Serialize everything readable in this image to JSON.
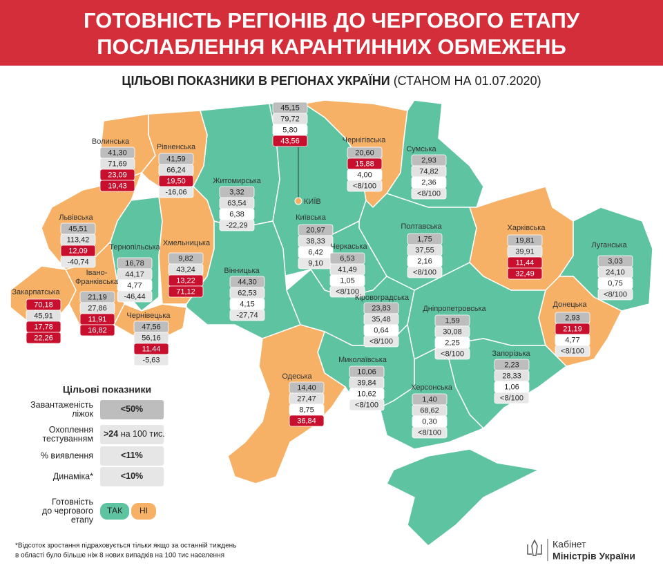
{
  "header": {
    "title_lines": [
      "ГОТОВНІСТЬ РЕГІОНІВ ДО ЧЕРГОВОГО ЕТАПУ",
      "ПОСЛАБЛЕННЯ КАРАНТИННИХ ОБМЕЖЕНЬ"
    ]
  },
  "subtitle": {
    "bold": "ЦІЛЬОВІ ПОКАЗНИКИ В РЕГІОНАХ УКРАЇНИ",
    "normal": " (СТАНОМ НА 01.07.2020)"
  },
  "colors": {
    "ready": "#5dc3a1",
    "not_ready": "#f6b166",
    "highlight": "#c8102e",
    "header": "#d42e3b"
  },
  "kyiv_city": {
    "label": "КИЇВ",
    "values": [
      "45,15",
      "79,72",
      "5,80",
      "43,56"
    ],
    "highlight": [
      false,
      false,
      false,
      true
    ]
  },
  "regions": [
    {
      "name": "Волинська",
      "ready": false,
      "values": [
        "41,30",
        "71,69",
        "23,09",
        "19,43"
      ],
      "highlight": [
        false,
        false,
        true,
        true
      ]
    },
    {
      "name": "Рівненська",
      "ready": false,
      "values": [
        "41,59",
        "66,24",
        "19,50",
        "-16,06"
      ],
      "highlight": [
        false,
        false,
        true,
        false
      ]
    },
    {
      "name": "Житомирська",
      "ready": true,
      "values": [
        "3,32",
        "63,54",
        "6,38",
        "-22,29"
      ],
      "highlight": [
        false,
        false,
        false,
        false
      ]
    },
    {
      "name": "Чернігівська",
      "ready": false,
      "values": [
        "20,60",
        "15,88",
        "4,00",
        "<8/100"
      ],
      "highlight": [
        false,
        true,
        false,
        false
      ]
    },
    {
      "name": "Сумська",
      "ready": true,
      "values": [
        "2,93",
        "74,82",
        "2,36",
        "<8/100"
      ],
      "highlight": [
        false,
        false,
        false,
        false
      ]
    },
    {
      "name": "Львівська",
      "ready": false,
      "values": [
        "45,51",
        "113,42",
        "12,09",
        "-40,74"
      ],
      "highlight": [
        false,
        false,
        true,
        false
      ]
    },
    {
      "name": "Київська",
      "ready": true,
      "values": [
        "20,97",
        "38,33",
        "6,42",
        "9,10"
      ],
      "highlight": [
        false,
        false,
        false,
        false
      ]
    },
    {
      "name": "Полтавська",
      "ready": true,
      "values": [
        "1,75",
        "37,55",
        "2,16",
        "<8/100"
      ],
      "highlight": [
        false,
        false,
        false,
        false
      ]
    },
    {
      "name": "Харківська",
      "ready": false,
      "values": [
        "19,81",
        "39,91",
        "11,44",
        "32,49"
      ],
      "highlight": [
        false,
        false,
        true,
        true
      ]
    },
    {
      "name": "Луганська",
      "ready": true,
      "values": [
        "3,03",
        "24,10",
        "0,75",
        "<8/100"
      ],
      "highlight": [
        false,
        false,
        false,
        false
      ]
    },
    {
      "name": "Тернопільська",
      "ready": true,
      "values": [
        "16,78",
        "44,17",
        "4,77",
        "-46,44"
      ],
      "highlight": [
        false,
        false,
        false,
        false
      ]
    },
    {
      "name": "Хмельницька",
      "ready": false,
      "values": [
        "9,82",
        "43,24",
        "13,22",
        "71,12"
      ],
      "highlight": [
        false,
        false,
        true,
        true
      ]
    },
    {
      "name": "Черкаська",
      "ready": true,
      "values": [
        "6,53",
        "41,49",
        "1,05",
        "<8/100"
      ],
      "highlight": [
        false,
        false,
        false,
        false
      ]
    },
    {
      "name": "Вінницька",
      "ready": true,
      "values": [
        "44,30",
        "62,53",
        "4,15",
        "-27,74"
      ],
      "highlight": [
        false,
        false,
        false,
        false
      ]
    },
    {
      "name": [
        "Івано-",
        "Франківська"
      ],
      "ready": false,
      "values": [
        "21,19",
        "27,86",
        "11,91",
        "16,82"
      ],
      "highlight": [
        false,
        false,
        true,
        true
      ]
    },
    {
      "name": "Закарпатська",
      "ready": false,
      "values": [
        "70,18",
        "45,91",
        "17,78",
        "22,26"
      ],
      "highlight": [
        true,
        false,
        true,
        true
      ]
    },
    {
      "name": "Кіровоградська",
      "ready": true,
      "values": [
        "23,83",
        "35,48",
        "0,64",
        "<8/100"
      ],
      "highlight": [
        false,
        false,
        false,
        false
      ]
    },
    {
      "name": "Дніпропетровська",
      "ready": true,
      "values": [
        "1,59",
        "30,08",
        "2,25",
        "<8/100"
      ],
      "highlight": [
        false,
        false,
        false,
        false
      ]
    },
    {
      "name": "Донецька",
      "ready": false,
      "values": [
        "2,93",
        "21,19",
        "4,77",
        "<8/100"
      ],
      "highlight": [
        false,
        true,
        false,
        false
      ]
    },
    {
      "name": "Чернівецька",
      "ready": false,
      "values": [
        "47,56",
        "56,16",
        "11,44",
        "-5,63"
      ],
      "highlight": [
        false,
        false,
        true,
        false
      ]
    },
    {
      "name": "Запорізька",
      "ready": true,
      "values": [
        "2,23",
        "28,33",
        "1,06",
        "<8/100"
      ],
      "highlight": [
        false,
        false,
        false,
        false
      ]
    },
    {
      "name": "Миколаївська",
      "ready": true,
      "values": [
        "10,06",
        "39,84",
        "10,62",
        "<8/100"
      ],
      "highlight": [
        false,
        false,
        false,
        false
      ]
    },
    {
      "name": "Одеська",
      "ready": false,
      "values": [
        "14,40",
        "27,47",
        "8,75",
        "36,84"
      ],
      "highlight": [
        false,
        false,
        false,
        true
      ]
    },
    {
      "name": "Херсонська",
      "ready": true,
      "values": [
        "1,40",
        "68,62",
        "0,30",
        "<8/100"
      ],
      "highlight": [
        false,
        false,
        false,
        false
      ]
    }
  ],
  "legend": {
    "title": "Цільові показники",
    "rows": [
      {
        "label": [
          "Завантаженість",
          "ліжок"
        ],
        "value": [
          "<50%"
        ]
      },
      {
        "label": [
          "Охоплення",
          "тестуванням"
        ],
        "value": [
          ">24",
          " на 100 тис."
        ]
      },
      {
        "label": [
          "% виявлення"
        ],
        "value": [
          "<11%"
        ]
      },
      {
        "label": [
          "Динаміка*"
        ],
        "value": [
          "<10%"
        ]
      }
    ],
    "readiness": {
      "label": [
        "Готовність",
        "до чергового",
        "етапу"
      ],
      "yes": "ТАК",
      "no": "НІ"
    }
  },
  "footnote": [
    "*Відсоток зростання підраховується тільки якщо за останній тиждень",
    "в області було більше ніж  8 нових випадків на 100 тис населення"
  ],
  "logo": [
    "Кабінет",
    "Міністрів України"
  ]
}
